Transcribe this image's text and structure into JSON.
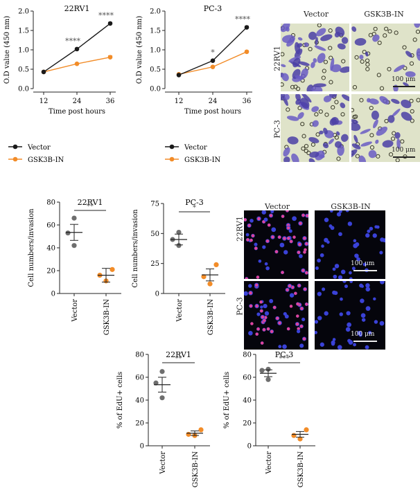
{
  "colors": {
    "vector": "#1a1a1a",
    "gsk": "#f28c28",
    "dot_gray": "#6e6e6e"
  },
  "chart_data": [
    {
      "type": "line",
      "id": "od-22rv1",
      "title": "22RV1",
      "xlabel": "Time post hours",
      "ylabel": "O.D value (450 nm)",
      "x": [
        12,
        24,
        36
      ],
      "x_ticks": [
        "12",
        "24",
        "36"
      ],
      "ylim": [
        0,
        2.0
      ],
      "y_ticks": [
        "0.0",
        "0.5",
        "1.0",
        "1.5",
        "2.0"
      ],
      "series": [
        {
          "name": "Vector",
          "values": [
            0.43,
            1.02,
            1.68
          ],
          "err": [
            0.02,
            0.02,
            0.03
          ]
        },
        {
          "name": "GSK3B-IN",
          "values": [
            0.43,
            0.64,
            0.81
          ],
          "err": [
            0.02,
            0.02,
            0.04
          ]
        }
      ],
      "annotations": [
        {
          "x": 24,
          "text": "****"
        },
        {
          "x": 36,
          "text": "****"
        }
      ]
    },
    {
      "type": "line",
      "id": "od-pc3",
      "title": "PC-3",
      "xlabel": "Time post hours",
      "ylabel": "O.D value (450 nm)",
      "x": [
        12,
        24,
        36
      ],
      "x_ticks": [
        "12",
        "24",
        "36"
      ],
      "ylim": [
        0,
        2.0
      ],
      "y_ticks": [
        "0.0",
        "0.5",
        "1.0",
        "1.5",
        "2.0"
      ],
      "series": [
        {
          "name": "Vector",
          "values": [
            0.35,
            0.72,
            1.58
          ],
          "err": [
            0.02,
            0.02,
            0.03
          ]
        },
        {
          "name": "GSK3B-IN",
          "values": [
            0.37,
            0.56,
            0.95
          ],
          "err": [
            0.02,
            0.02,
            0.03
          ]
        }
      ],
      "annotations": [
        {
          "x": 24,
          "text": "*"
        },
        {
          "x": 36,
          "text": "****"
        }
      ]
    },
    {
      "type": "scatter",
      "id": "inv-22rv1",
      "title": "22RV1",
      "ylabel": "Cell numbers/invasion",
      "categories": [
        "Vector",
        "GSK3B-IN"
      ],
      "ylim": [
        0,
        80
      ],
      "y_ticks": [
        "0",
        "20",
        "40",
        "60",
        "80"
      ],
      "points": [
        [
          66,
          53,
          42
        ],
        [
          21,
          16,
          11
        ]
      ],
      "mean": [
        53.5,
        16
      ],
      "sem": [
        7,
        6
      ],
      "significance": "**"
    },
    {
      "type": "scatter",
      "id": "inv-pc3",
      "title": "PC-3",
      "ylabel": "Cell numbers/invasion",
      "categories": [
        "Vector",
        "GSK3B-IN"
      ],
      "ylim": [
        0,
        75
      ],
      "y_ticks": [
        "0",
        "25",
        "50",
        "75"
      ],
      "points": [
        [
          51,
          45,
          40
        ],
        [
          24,
          14,
          8
        ]
      ],
      "mean": [
        45,
        15.5
      ],
      "sem": [
        4.5,
        5
      ],
      "significance": "*"
    },
    {
      "type": "scatter",
      "id": "edu-22rv1",
      "title": "22RV1",
      "ylabel": "% of EdU+ cells",
      "categories": [
        "Vector",
        "GSK3B-IN"
      ],
      "ylim": [
        0,
        80
      ],
      "y_ticks": [
        "0",
        "20",
        "40",
        "60",
        "80"
      ],
      "points": [
        [
          65,
          55,
          42
        ],
        [
          14,
          10,
          9
        ]
      ],
      "mean": [
        53.5,
        11
      ],
      "sem": [
        6.5,
        2
      ],
      "significance": "**"
    },
    {
      "type": "scatter",
      "id": "edu-pc3",
      "title": "PC-3",
      "ylabel": "% of EdU+ cells",
      "categories": [
        "Vector",
        "GSK3B-IN"
      ],
      "ylim": [
        0,
        80
      ],
      "y_ticks": [
        "0",
        "20",
        "40",
        "60",
        "80"
      ],
      "points": [
        [
          67,
          66,
          58
        ],
        [
          14,
          9,
          6
        ]
      ],
      "mean": [
        63.5,
        10
      ],
      "sem": [
        3,
        2.5
      ],
      "significance": "***"
    }
  ],
  "invasion_images": {
    "columns": [
      "Vector",
      "GSK3B-IN"
    ],
    "rows": [
      "22RV1",
      "PC-3"
    ],
    "scale_label": "100 μm"
  },
  "edu_images": {
    "columns": [
      "Vector",
      "GSK3B-IN"
    ],
    "rows": [
      "22RV1",
      "PC-3"
    ],
    "scale_label": "100 μm"
  }
}
